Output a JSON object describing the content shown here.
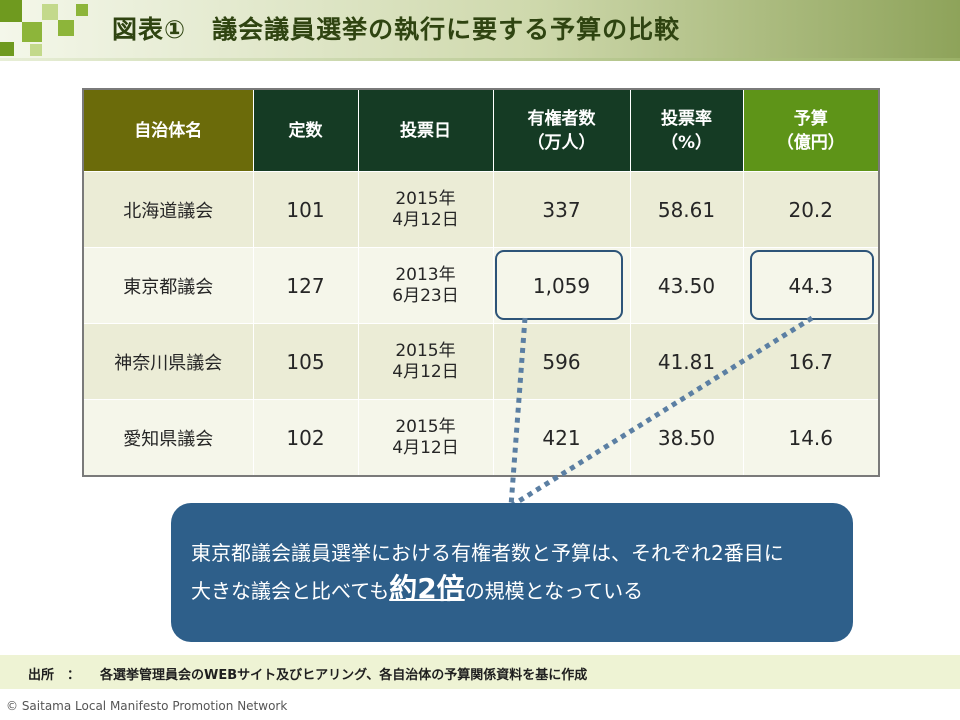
{
  "title": "図表①　議会議員選挙の執行に要する予算の比較",
  "table": {
    "headers": [
      {
        "line1": "自治体名",
        "line2": ""
      },
      {
        "line1": "定数",
        "line2": ""
      },
      {
        "line1": "投票日",
        "line2": ""
      },
      {
        "line1": "有権者数",
        "line2": "（万人）"
      },
      {
        "line1": "投票率",
        "line2": "（%）"
      },
      {
        "line1": "予算",
        "line2": "（億円）"
      }
    ],
    "rows": [
      {
        "name": "北海道議会",
        "seats": "101",
        "date1": "2015年",
        "date2": "4月12日",
        "voters": "337",
        "turnout": "58.61",
        "budget": "20.2"
      },
      {
        "name": "東京都議会",
        "seats": "127",
        "date1": "2013年",
        "date2": "6月23日",
        "voters": "1,059",
        "turnout": "43.50",
        "budget": "44.3"
      },
      {
        "name": "神奈川県議会",
        "seats": "105",
        "date1": "2015年",
        "date2": "4月12日",
        "voters": "596",
        "turnout": "41.81",
        "budget": "16.7"
      },
      {
        "name": "愛知県議会",
        "seats": "102",
        "date1": "2015年",
        "date2": "4月12日",
        "voters": "421",
        "turnout": "38.50",
        "budget": "14.6"
      }
    ]
  },
  "callout": {
    "line1": "東京都議会議員選挙における有権者数と予算は、それぞれ2番目に",
    "line2_pre": "大きな議会と比べても",
    "line2_emph": "約2倍",
    "line2_post": "の規模となっている"
  },
  "source": {
    "label": "出所　：",
    "text": "各選挙管理員会のWEBサイト及びヒアリング、各自治体の予算関係資料を基に作成"
  },
  "copyright": "© Saitama Local Manifesto Promotion Network",
  "colors": {
    "header_olive": "#6b6b0a",
    "header_dark_green": "#153b24",
    "header_green": "#5e9418",
    "callout_blue": "#2e5f8a",
    "highlight_border": "#2d5478"
  }
}
